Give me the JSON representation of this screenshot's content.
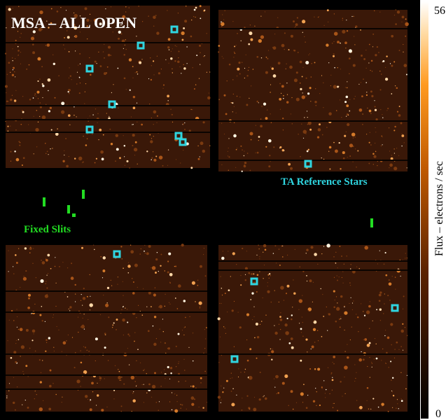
{
  "title": "MSA – ALL OPEN",
  "annotations": {
    "ta_stars": "TA Reference Stars",
    "fixed_slits": "Fixed Slits"
  },
  "colorbar": {
    "max": "56",
    "min": "0",
    "label": "Flux – electrons / sec"
  }
}
